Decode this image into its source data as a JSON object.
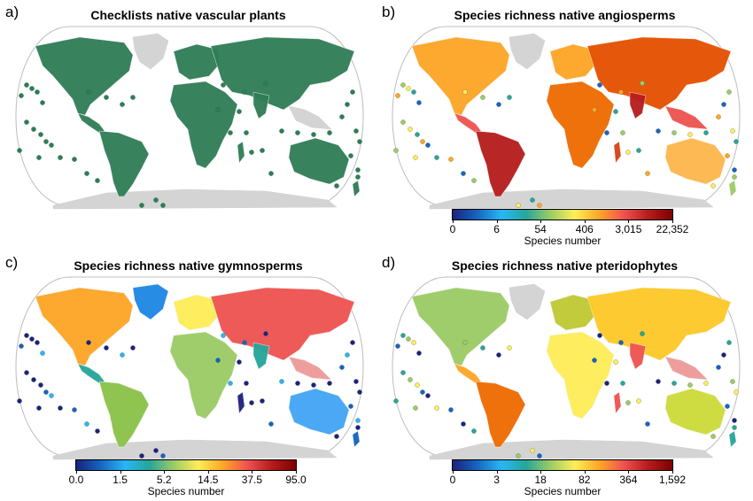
{
  "panels": [
    {
      "letter": "a)",
      "title": "Checklists native vascular plants",
      "scheme": "green",
      "legend": null
    },
    {
      "letter": "b)",
      "title": "Species richness native angiosperms",
      "scheme": "angio",
      "legend": {
        "ticks": [
          "0",
          "6",
          "54",
          "406",
          "3,015",
          "22,352"
        ],
        "title": "Species number"
      }
    },
    {
      "letter": "c)",
      "title": "Species richness native gymnosperms",
      "scheme": "gymno",
      "legend": {
        "ticks": [
          "0.0",
          "1.5",
          "5.2",
          "14.5",
          "37.5",
          "95.0"
        ],
        "title": "Species number"
      }
    },
    {
      "letter": "d)",
      "title": "Species richness native pteridophytes",
      "scheme": "pterido",
      "legend": {
        "ticks": [
          "0",
          "3",
          "18",
          "82",
          "364",
          "1,592"
        ],
        "title": "Species number"
      }
    }
  ],
  "colors": {
    "land_no_data": "#d4d4d4",
    "checklist_green": "#2f7d57",
    "ocean": "#ffffff",
    "colorbar": [
      "#1a237e",
      "#1565c0",
      "#29b6f6",
      "#26a69a",
      "#9ccc65",
      "#ffee58",
      "#ffa726",
      "#ef5350",
      "#b71c1c",
      "#7f0000"
    ]
  }
}
